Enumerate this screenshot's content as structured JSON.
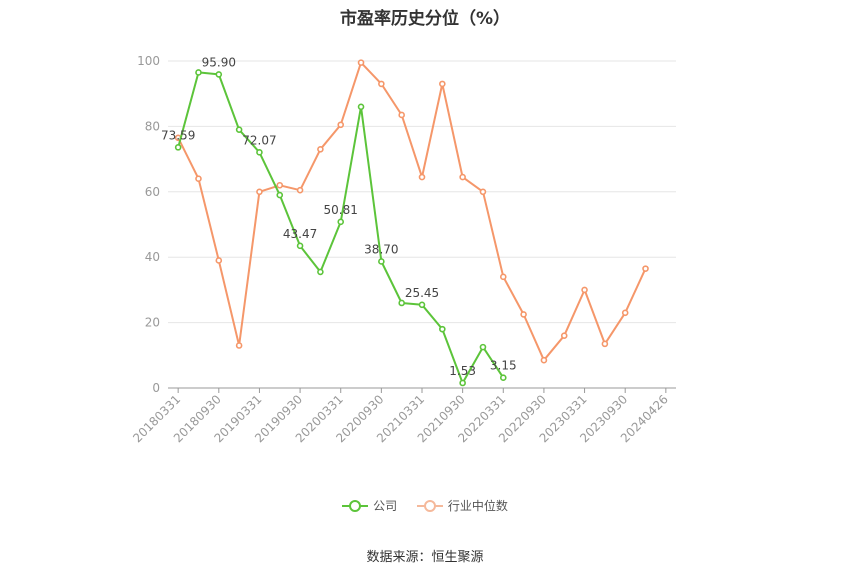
{
  "chart_data": {
    "type": "line",
    "title": "市盈率历史分位（%）",
    "xlabel": "",
    "ylabel": "",
    "ylim": [
      0,
      100
    ],
    "yticks": [
      0,
      20,
      40,
      60,
      80,
      100
    ],
    "grid": true,
    "legend_position": "bottom",
    "x": [
      "20180331",
      "20180630",
      "20180930",
      "20181231",
      "20190331",
      "20190630",
      "20190930",
      "20191231",
      "20200331",
      "20200630",
      "20200930",
      "20201231",
      "20210331",
      "20210630",
      "20210930",
      "20211231",
      "20220331",
      "20220630",
      "20220930",
      "20221231",
      "20230331",
      "20230630",
      "20230930",
      "20231231",
      "20240426"
    ],
    "x_tick_labels": [
      "20180331",
      "20180930",
      "20190331",
      "20190930",
      "20200331",
      "20200930",
      "20210331",
      "20210930",
      "20220331",
      "20220930",
      "20230331",
      "20230930",
      "20240426"
    ],
    "series": [
      {
        "name": "公司",
        "color": "#5cc43a",
        "values": [
          73.59,
          96.5,
          95.9,
          79.0,
          72.07,
          59.0,
          43.47,
          35.5,
          50.81,
          86.0,
          38.7,
          26.0,
          25.45,
          18.0,
          1.53,
          12.5,
          3.15,
          null,
          null,
          null,
          null,
          null,
          null,
          null,
          null
        ],
        "labels": {
          "0": "73.59",
          "2": "95.90",
          "4": "72.07",
          "6": "43.47",
          "8": "50.81",
          "10": "38.70",
          "12": "25.45",
          "14": "1.53",
          "16": "3.15"
        }
      },
      {
        "name": "行业中位数",
        "color": "#f5976a",
        "values": [
          76.5,
          64.0,
          39.0,
          13.0,
          60.0,
          62.0,
          60.5,
          73.0,
          80.5,
          99.5,
          93.0,
          83.5,
          64.5,
          93.0,
          64.5,
          60.0,
          34.0,
          22.5,
          8.5,
          16.0,
          30.0,
          13.5,
          23.0,
          36.5,
          null
        ]
      }
    ]
  },
  "source_text": "数据来源：恒生聚源"
}
